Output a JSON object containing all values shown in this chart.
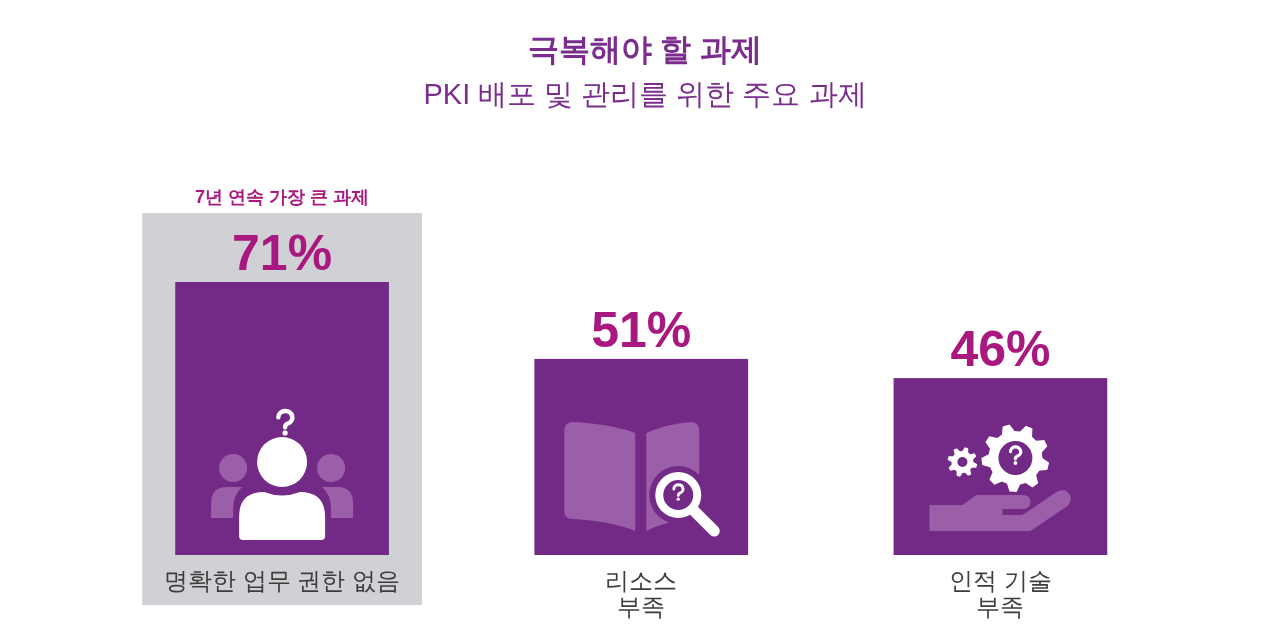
{
  "chart_data": {
    "type": "bar",
    "title": "극복해야 할 과제",
    "subtitle": "PKI 배포 및 관리를 위한 주요 과제",
    "categories": [
      "명확한 업무 권한 없음",
      "리소스\n부족",
      "인적 기술\n부족"
    ],
    "values": [
      71,
      51,
      46
    ],
    "color": "#732a87",
    "value_labels": [
      "71%",
      "51%",
      "46%"
    ],
    "bands": [
      {
        "axis": "x",
        "from": "명확한 업무 권한 없음",
        "to": "명확한 업무 권한 없음",
        "label": "7년 연속 가장 큰 과제",
        "color": "#d0d1d5"
      }
    ]
  }
}
